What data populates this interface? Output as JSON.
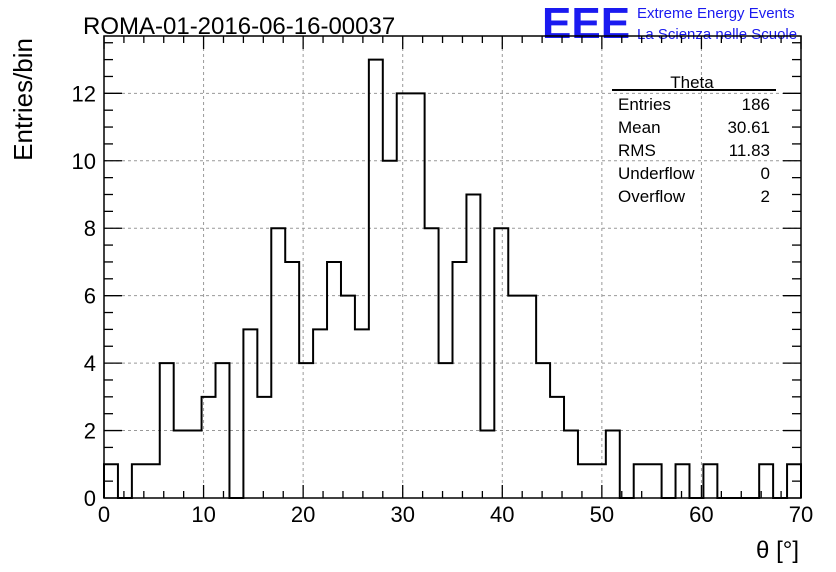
{
  "chart_data": {
    "type": "bar",
    "title": "ROMA-01-2016-06-16-00037",
    "xlabel": "θ [°]",
    "ylabel": "Entries/bin",
    "xlim": [
      0,
      70
    ],
    "ylim": [
      0,
      13.7
    ],
    "x_ticks": [
      0,
      10,
      20,
      30,
      40,
      50,
      60,
      70
    ],
    "y_ticks": [
      0,
      2,
      4,
      6,
      8,
      10,
      12
    ],
    "grid": true,
    "bin_width": 1.4,
    "values": [
      1,
      0,
      1,
      1,
      4,
      2,
      2,
      3,
      4,
      0,
      5,
      3,
      8,
      7,
      4,
      5,
      7,
      6,
      5,
      13,
      10,
      12,
      12,
      8,
      4,
      7,
      9,
      2,
      8,
      6,
      6,
      4,
      3,
      2,
      1,
      1,
      2,
      0,
      1,
      1,
      0,
      1,
      0,
      1,
      0,
      0,
      0,
      1,
      0,
      1
    ],
    "stats": {
      "name": "Theta",
      "rows": [
        {
          "label": "Entries",
          "value": "186"
        },
        {
          "label": "Mean",
          "value": "30.61"
        },
        {
          "label": "RMS",
          "value": "11.83"
        },
        {
          "label": "Underflow",
          "value": "0"
        },
        {
          "label": "Overflow",
          "value": "2"
        }
      ]
    }
  },
  "logo": {
    "text": "EEE",
    "line1": "Extreme Energy Events",
    "line2": "La Scienza nelle Scuole",
    "color": "#1a1af0"
  }
}
